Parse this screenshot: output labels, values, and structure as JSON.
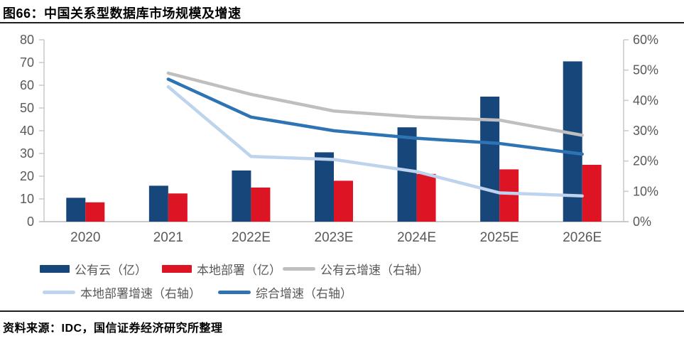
{
  "header": {
    "title": "图66：中国关系型数据库市场规模及增速"
  },
  "footer": {
    "source": "资料来源：IDC，国信证券经济研究所整理"
  },
  "legend": {
    "items": [
      {
        "label": "公有云（亿）",
        "marker": "bar",
        "color": "#17467A"
      },
      {
        "label": "本地部署（亿）",
        "marker": "bar",
        "color": "#DC1423"
      },
      {
        "label": "公有云增速（右轴）",
        "marker": "line",
        "color": "#BFBFBF"
      },
      {
        "label": "本地部署增速（右轴）",
        "marker": "line",
        "color": "#BDD3EE"
      },
      {
        "label": "综合增速（右轴）",
        "marker": "line",
        "color": "#2E74B5"
      }
    ]
  },
  "colors": {
    "axis_line": "#C9C9C9",
    "tick_text": "#595959",
    "rule": "#1F1F1F"
  },
  "chart_data": {
    "type": "bar+line",
    "title": "中国关系型数据库市场规模及增速",
    "categories": [
      "2020",
      "2021",
      "2022E",
      "2023E",
      "2024E",
      "2025E",
      "2026E"
    ],
    "bar_series": [
      {
        "name": "公有云（亿）",
        "axis": "left",
        "color": "#17467A",
        "values": [
          10.5,
          15.8,
          22.5,
          30.5,
          41.5,
          55.0,
          70.5
        ]
      },
      {
        "name": "本地部署（亿）",
        "axis": "left",
        "color": "#DC1423",
        "values": [
          8.5,
          12.4,
          15.0,
          18.0,
          21.0,
          23.0,
          25.0
        ]
      }
    ],
    "line_series": [
      {
        "name": "公有云增速（右轴）",
        "axis": "right",
        "color": "#BFBFBF",
        "values_pct": [
          null,
          49.0,
          42.0,
          36.5,
          34.5,
          33.5,
          28.5
        ]
      },
      {
        "name": "本地部署增速（右轴）",
        "axis": "right",
        "color": "#BDD3EE",
        "values_pct": [
          null,
          44.5,
          21.5,
          20.5,
          16.5,
          9.5,
          8.5
        ]
      },
      {
        "name": "综合增速（右轴）",
        "axis": "right",
        "color": "#2E74B5",
        "values_pct": [
          null,
          47.0,
          34.5,
          30.0,
          27.5,
          25.8,
          22.3
        ]
      }
    ],
    "left_axis": {
      "min": 0,
      "max": 80,
      "ticks": [
        0,
        10,
        20,
        30,
        40,
        50,
        60,
        70,
        80
      ]
    },
    "right_axis": {
      "min": 0,
      "max": 60,
      "ticks": [
        "0%",
        "10%",
        "20%",
        "30%",
        "40%",
        "50%",
        "60%"
      ],
      "tick_values": [
        0,
        10,
        20,
        30,
        40,
        50,
        60
      ]
    },
    "grid": false,
    "legend_position": "bottom"
  }
}
